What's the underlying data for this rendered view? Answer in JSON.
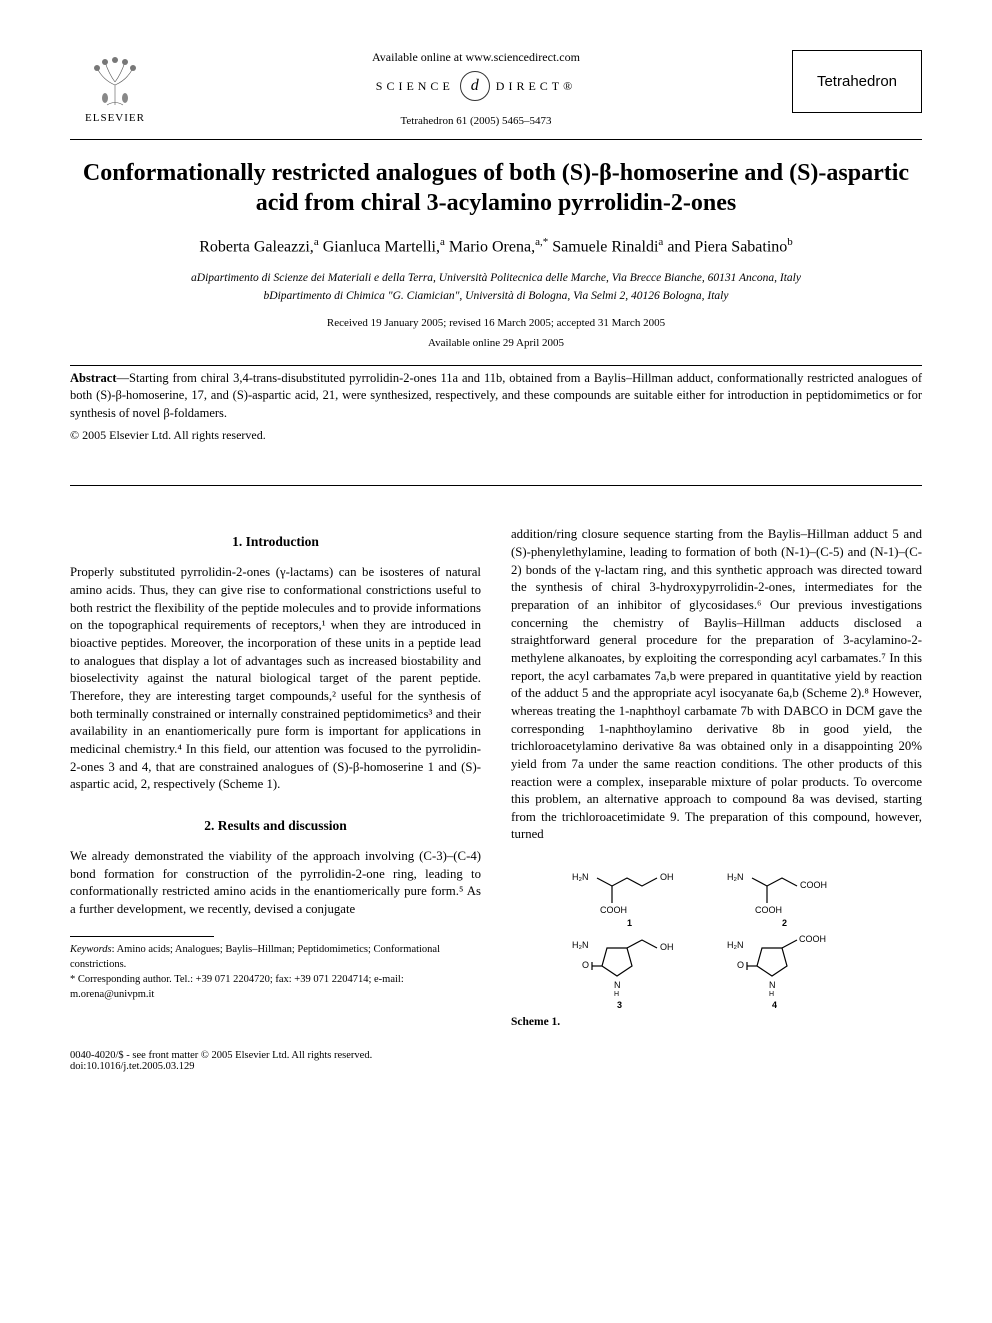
{
  "header": {
    "elsevier_label": "ELSEVIER",
    "available_online": "Available online at www.sciencedirect.com",
    "sd_left": "SCIENCE",
    "sd_symbol": "d",
    "sd_right": "DIRECT®",
    "journal_reference": "Tetrahedron 61 (2005) 5465–5473",
    "journal_name": "Tetrahedron"
  },
  "title": "Conformationally restricted analogues of both (S)-β-homoserine and (S)-aspartic acid from chiral 3-acylamino pyrrolidin-2-ones",
  "authors_html": "Roberta Galeazzi,<sup>a</sup> Gianluca Martelli,<sup>a</sup> Mario Orena,<sup>a,*</sup> Samuele Rinaldi<sup>a</sup> and Piera Sabatino<sup>b</sup>",
  "affiliations": {
    "a": "aDipartimento di Scienze dei Materiali e della Terra, Università Politecnica delle Marche, Via Brecce Bianche, 60131 Ancona, Italy",
    "b": "bDipartimento di Chimica \"G. Ciamician\", Università di Bologna, Via Selmi 2, 40126 Bologna, Italy"
  },
  "dates": "Received 19 January 2005; revised 16 March 2005; accepted 31 March 2005",
  "available_date": "Available online 29 April 2005",
  "abstract_label": "Abstract",
  "abstract_body": "—Starting from chiral 3,4-trans-disubstituted pyrrolidin-2-ones 11a and 11b, obtained from a Baylis–Hillman adduct, conformationally restricted analogues of both (S)-β-homoserine, 17, and (S)-aspartic acid, 21, were synthesized, respectively, and these compounds are suitable either for introduction in peptidomimetics or for synthesis of novel β-foldamers.",
  "copyright": "© 2005 Elsevier Ltd. All rights reserved.",
  "sections": {
    "intro_heading": "1. Introduction",
    "intro_body": "Properly substituted pyrrolidin-2-ones (γ-lactams) can be isosteres of natural amino acids. Thus, they can give rise to conformational constrictions useful to both restrict the flexibility of the peptide molecules and to provide informations on the topographical requirements of receptors,¹ when they are introduced in bioactive peptides. Moreover, the incorporation of these units in a peptide lead to analogues that display a lot of advantages such as increased biostability and bioselectivity against the natural biological target of the parent peptide. Therefore, they are interesting target compounds,² useful for the synthesis of both terminally constrained or internally constrained peptidomimetics³ and their availability in an enantiomerically pure form is important for applications in medicinal chemistry.⁴ In this field, our attention was focused to the pyrrolidin-2-ones 3 and 4, that are constrained analogues of (S)-β-homoserine 1 and (S)-aspartic acid, 2, respectively (Scheme 1).",
    "results_heading": "2. Results and discussion",
    "results_body": "We already demonstrated the viability of the approach involving (C-3)–(C-4) bond formation for construction of the pyrrolidin-2-one ring, leading to conformationally restricted amino acids in the enantiomerically pure form.⁵ As a further development, we recently, devised a conjugate",
    "col2_body": "addition/ring closure sequence starting from the Baylis–Hillman adduct 5 and (S)-phenylethylamine, leading to formation of both (N-1)–(C-5) and (N-1)–(C-2) bonds of the γ-lactam ring, and this synthetic approach was directed toward the synthesis of chiral 3-hydroxypyrrolidin-2-ones, intermediates for the preparation of an inhibitor of glycosidases.⁶ Our previous investigations concerning the chemistry of Baylis–Hillman adducts disclosed a straightforward general procedure for the preparation of 3-acylamino-2-methylene alkanoates, by exploiting the corresponding acyl carbamates.⁷ In this report, the acyl carbamates 7a,b were prepared in quantitative yield by reaction of the adduct 5 and the appropriate acyl isocyanate 6a,b (Scheme 2).⁸ However, whereas treating the 1-naphthoyl carbamate 7b with DABCO in DCM gave the corresponding 1-naphthoylamino derivative 8b in good yield, the trichloroacetylamino derivative 8a was obtained only in a disappointing 20% yield from 7a under the same reaction conditions. The other products of this reaction were a complex, inseparable mixture of polar products. To overcome this problem, an alternative approach to compound 8a was devised, starting from the trichloroacetimidate 9. The preparation of this compound, however, turned"
  },
  "scheme": {
    "label": "Scheme 1.",
    "molecules": [
      {
        "num": "1",
        "left_label": "H₂N",
        "right_label": "OH",
        "bottom_label": "COOH"
      },
      {
        "num": "2",
        "left_label": "H₂N",
        "right_label": "COOH",
        "bottom_label": "COOH"
      },
      {
        "num": "3",
        "left_label": "H₂N",
        "right_label": "OH",
        "ring": true
      },
      {
        "num": "4",
        "left_label": "H₂N",
        "right_label": "COOH",
        "ring": true
      }
    ]
  },
  "footnotes": {
    "keywords_label": "Keywords",
    "keywords": ": Amino acids; Analogues; Baylis–Hillman; Peptidomimetics; Conformational constrictions.",
    "corresponding": "* Corresponding author. Tel.: +39 071 2204720; fax: +39 071 2204714; e-mail: m.orena@univpm.it"
  },
  "bottom": {
    "left": "0040-4020/$ - see front matter © 2005 Elsevier Ltd. All rights reserved.",
    "doi": "doi:10.1016/j.tet.2005.03.129"
  },
  "colors": {
    "text": "#000000",
    "link": "#0000cc",
    "bg": "#ffffff"
  }
}
